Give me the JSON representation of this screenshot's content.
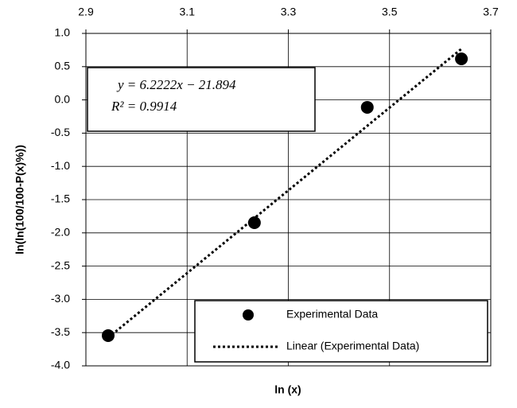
{
  "chart_data": {
    "type": "scatter",
    "x_label": "ln (x)",
    "y_label": "ln(ln(100/100-P(x)%))",
    "xlim": [
      2.9,
      3.7
    ],
    "xticks": [
      2.9,
      3.1,
      3.3,
      3.5,
      3.7
    ],
    "x_axis_position": "top",
    "ylim": [
      -4.0,
      1.0
    ],
    "yticks": [
      {
        "value": 1.0,
        "label": "1.0"
      },
      0.5,
      {
        "value": 0.0,
        "label": "0.0"
      },
      -0.5,
      {
        "value": -1.0,
        "label": "-1.0"
      },
      -1.5,
      {
        "value": -2.0,
        "label": "-2.0"
      },
      -2.5,
      {
        "value": -3.0,
        "label": "-3.0"
      },
      -3.5,
      {
        "value": -4.0,
        "label": "-4.0"
      }
    ],
    "grid": true,
    "series": [
      {
        "name": "Experimental Data",
        "color": "#000000",
        "style": "markers",
        "x": [
          2.944,
          3.233,
          3.456,
          3.642
        ],
        "values": [
          -3.545,
          -1.847,
          -0.112,
          0.617
        ]
      },
      {
        "name": "Linear (Experimental Data)",
        "color": "#000000",
        "style": "dotted-line",
        "x": [
          2.944,
          3.642
        ],
        "values": [
          -3.576,
          0.767
        ]
      }
    ],
    "annotations": [
      "y = 6.2222x − 21.894",
      "R² = 0.9914"
    ],
    "legend": "bottom-right"
  }
}
